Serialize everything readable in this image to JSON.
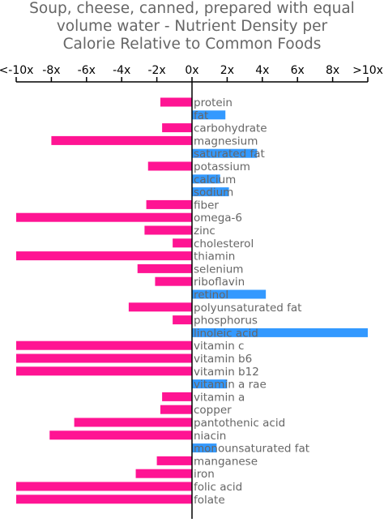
{
  "title_lines": [
    "Soup, cheese, canned, prepared with equal",
    "volume water - Nutrient Density per",
    "Calorie Relative to Common Foods"
  ],
  "colors": {
    "negative": "#ff1493",
    "positive": "#3399ff",
    "axis": "#000000",
    "label": "#666666"
  },
  "chart_data": {
    "type": "bar",
    "orientation": "horizontal",
    "xlim": [
      -10,
      10
    ],
    "xticks": [
      -10,
      -8,
      -6,
      -4,
      -2,
      0,
      2,
      4,
      6,
      8,
      10
    ],
    "xtick_labels": [
      "<-10x",
      "-8x",
      "-6x",
      "-4x",
      "-2x",
      "0x",
      "2x",
      "4x",
      "6x",
      "8x",
      ">10x"
    ],
    "grid": false,
    "legend": "none",
    "categories": [
      "protein",
      "fat",
      "carbohydrate",
      "magnesium",
      "saturated fat",
      "potassium",
      "calcium",
      "sodium",
      "fiber",
      "omega-6",
      "zinc",
      "cholesterol",
      "thiamin",
      "selenium",
      "riboflavin",
      "retinol",
      "polyunsaturated fat",
      "phosphorus",
      "linoleic acid",
      "vitamin c",
      "vitamin b6",
      "vitamin b12",
      "vitamin a rae",
      "vitamin a",
      "copper",
      "pantothenic acid",
      "niacin",
      "monounsaturated fat",
      "manganese",
      "iron",
      "folic acid",
      "folate"
    ],
    "values": [
      -1.8,
      1.9,
      -1.7,
      -8.0,
      3.7,
      -2.5,
      1.6,
      2.1,
      -2.6,
      -10,
      -2.7,
      -1.1,
      -10,
      -3.1,
      -2.1,
      4.2,
      -3.6,
      -1.1,
      10,
      -10,
      -10,
      -10,
      2.0,
      -1.7,
      -1.8,
      -6.7,
      -8.1,
      1.4,
      -2.0,
      -3.2,
      -10,
      -10
    ]
  }
}
